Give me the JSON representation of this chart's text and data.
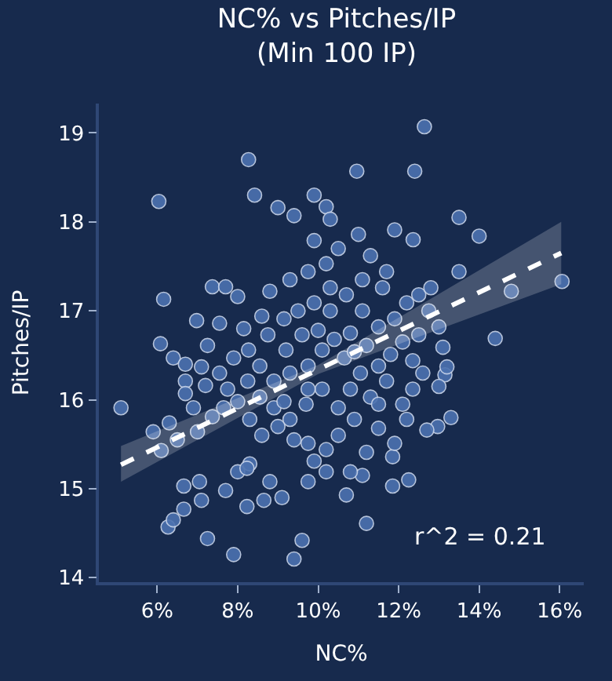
{
  "chart_data": {
    "type": "scatter",
    "title": "NC% vs Pitches/IP\n(Min 100 IP)",
    "xlabel": "NC%",
    "ylabel": "Pitches/IP",
    "xlim": [
      4.55,
      16.6
    ],
    "ylim": [
      13.95,
      19.33
    ],
    "xticks": [
      {
        "value": 6,
        "label": "6%"
      },
      {
        "value": 8,
        "label": "8%"
      },
      {
        "value": 10,
        "label": "10%"
      },
      {
        "value": 12,
        "label": "12%"
      },
      {
        "value": 14,
        "label": "14%"
      },
      {
        "value": 16,
        "label": "16%"
      }
    ],
    "yticks": [
      14,
      15,
      16,
      17,
      18,
      19
    ],
    "grid": false,
    "marker": "circle",
    "annotations": [
      "r^2 = 0.21"
    ],
    "series": [
      {
        "color": "#4c72b0",
        "x": [
          5.1,
          6.04,
          8.27,
          8.42,
          9.0,
          9.4,
          9.9,
          10.2,
          10.3,
          10.96,
          12.64,
          12.4,
          11.0,
          11.9,
          12.36,
          13.5,
          14.0,
          13.5,
          16.06,
          14.8,
          14.4,
          13.1,
          13.15,
          13.2,
          13.0,
          13.3,
          12.97,
          12.7,
          11.85,
          12.25,
          11.85,
          11.2,
          10.7,
          9.6,
          9.4,
          7.9,
          7.25,
          6.27,
          6.08,
          6.98,
          6.16,
          7.37,
          7.7,
          8.0,
          8.8,
          8.6,
          6.4,
          6.7,
          6.7,
          6.7,
          7.2,
          7.75,
          8.0,
          7.37,
          6.3,
          7.0,
          6.5,
          6.1,
          5.9,
          7.05,
          6.66,
          7.1,
          6.66,
          6.4,
          7.7,
          8.23,
          8.0,
          8.3,
          8.8,
          9.1,
          8.65,
          8.23,
          9.9,
          10.2,
          9.75,
          9.4,
          11.1,
          11.2,
          10.2,
          10.8,
          8.55,
          8.9,
          9.3,
          9.7,
          10.1,
          10.5,
          10.9,
          11.3,
          11.7,
          12.1,
          12.35,
          12.6,
          11.5,
          11.05,
          10.65,
          10.1,
          9.75,
          9.3,
          8.9,
          8.55,
          8.27,
          8.75,
          9.15,
          9.5,
          9.9,
          10.3,
          10.7,
          11.1,
          11.5,
          11.9,
          12.2,
          12.5,
          11.7,
          11.3,
          10.5,
          10.2,
          9.75,
          9.3,
          9.9,
          11.6,
          12.1,
          12.5,
          12.75,
          12.8,
          13.0,
          9.2,
          9.6,
          10.0,
          10.4,
          10.8,
          11.2,
          11.8,
          9.0,
          8.6,
          8.3,
          7.65,
          7.55,
          7.9,
          7.25,
          7.55,
          8.15,
          9.75,
          10.5,
          11.5,
          11.9,
          12.2,
          10.8,
          9.75,
          9.15,
          8.25,
          7.1,
          6.9,
          11.5,
          12.35,
          11.1,
          10.3,
          10.9
        ],
        "values": [
          15.91,
          18.23,
          18.7,
          18.3,
          18.16,
          18.07,
          18.3,
          18.17,
          18.03,
          18.57,
          19.07,
          18.57,
          17.86,
          17.91,
          17.8,
          18.05,
          17.84,
          17.44,
          17.33,
          17.22,
          16.69,
          16.59,
          16.28,
          16.37,
          16.15,
          15.8,
          15.7,
          15.66,
          15.36,
          15.1,
          15.03,
          14.61,
          14.93,
          14.42,
          14.21,
          14.26,
          14.44,
          14.57,
          16.63,
          16.89,
          17.13,
          17.27,
          17.27,
          17.16,
          17.22,
          16.94,
          16.47,
          16.4,
          16.21,
          16.07,
          16.16,
          16.12,
          15.98,
          15.81,
          15.74,
          15.64,
          15.55,
          15.43,
          15.64,
          15.08,
          15.03,
          14.87,
          14.77,
          14.65,
          14.98,
          14.8,
          15.19,
          15.28,
          15.08,
          14.9,
          14.87,
          15.23,
          15.31,
          15.19,
          15.08,
          15.55,
          15.15,
          15.41,
          15.44,
          15.19,
          16.03,
          15.91,
          15.78,
          15.95,
          16.12,
          15.91,
          15.78,
          16.03,
          16.21,
          15.95,
          16.12,
          16.3,
          16.38,
          16.3,
          16.47,
          16.56,
          16.38,
          16.3,
          16.21,
          16.38,
          16.56,
          16.73,
          16.91,
          17.0,
          17.09,
          17.26,
          17.18,
          17.0,
          16.82,
          16.91,
          17.09,
          17.18,
          17.44,
          17.62,
          17.7,
          17.53,
          17.44,
          17.35,
          17.79,
          17.26,
          16.65,
          16.73,
          17.0,
          17.26,
          16.82,
          16.56,
          16.73,
          16.78,
          16.68,
          16.75,
          16.61,
          16.51,
          15.7,
          15.6,
          15.78,
          15.91,
          16.3,
          16.47,
          16.61,
          16.86,
          16.8,
          15.51,
          15.6,
          15.68,
          15.51,
          15.78,
          16.12,
          16.12,
          15.98,
          16.21,
          16.37,
          15.91,
          15.95,
          16.44,
          17.35,
          17.0,
          16.54
        ]
      },
      {
        "type": "line",
        "color": "#ffffff",
        "line_style": "dashed",
        "marker": "none",
        "x": [
          5.1,
          10.0,
          16.04
        ],
        "values": [
          15.27,
          16.34,
          17.65
        ],
        "lower": [
          15.08,
          16.29,
          17.3
        ],
        "upper": [
          15.48,
          16.39,
          18.0
        ]
      }
    ]
  }
}
